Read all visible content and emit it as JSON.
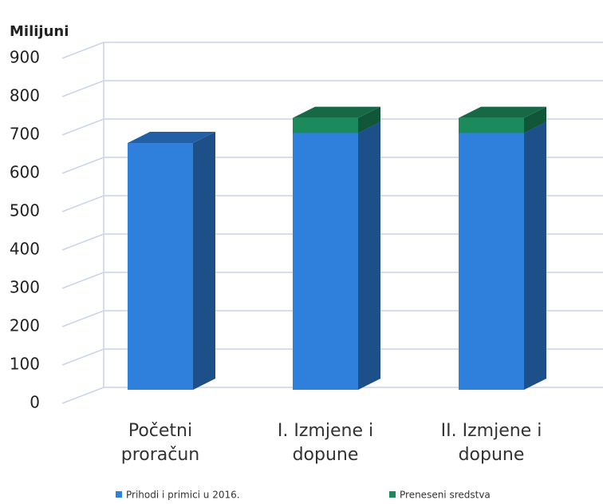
{
  "chart_data": {
    "type": "bar3d_stacked",
    "y_axis_label": "Milijuni",
    "categories": [
      "Početni proračun",
      "I. Izmjene i dopune",
      "II. Izmjene i dopune"
    ],
    "series": [
      {
        "name": "Prihodi i primici u 2016.",
        "color": "#2f7fdc",
        "values": [
          740,
          770,
          770
        ]
      },
      {
        "name": "Preneseni sredstva",
        "color": "#1d8a5e",
        "values": [
          0,
          45,
          45
        ]
      }
    ],
    "ylim": [
      0,
      900
    ],
    "yticks": [
      0,
      100,
      200,
      300,
      400,
      500,
      600,
      700,
      800,
      900
    ],
    "grid": true
  }
}
